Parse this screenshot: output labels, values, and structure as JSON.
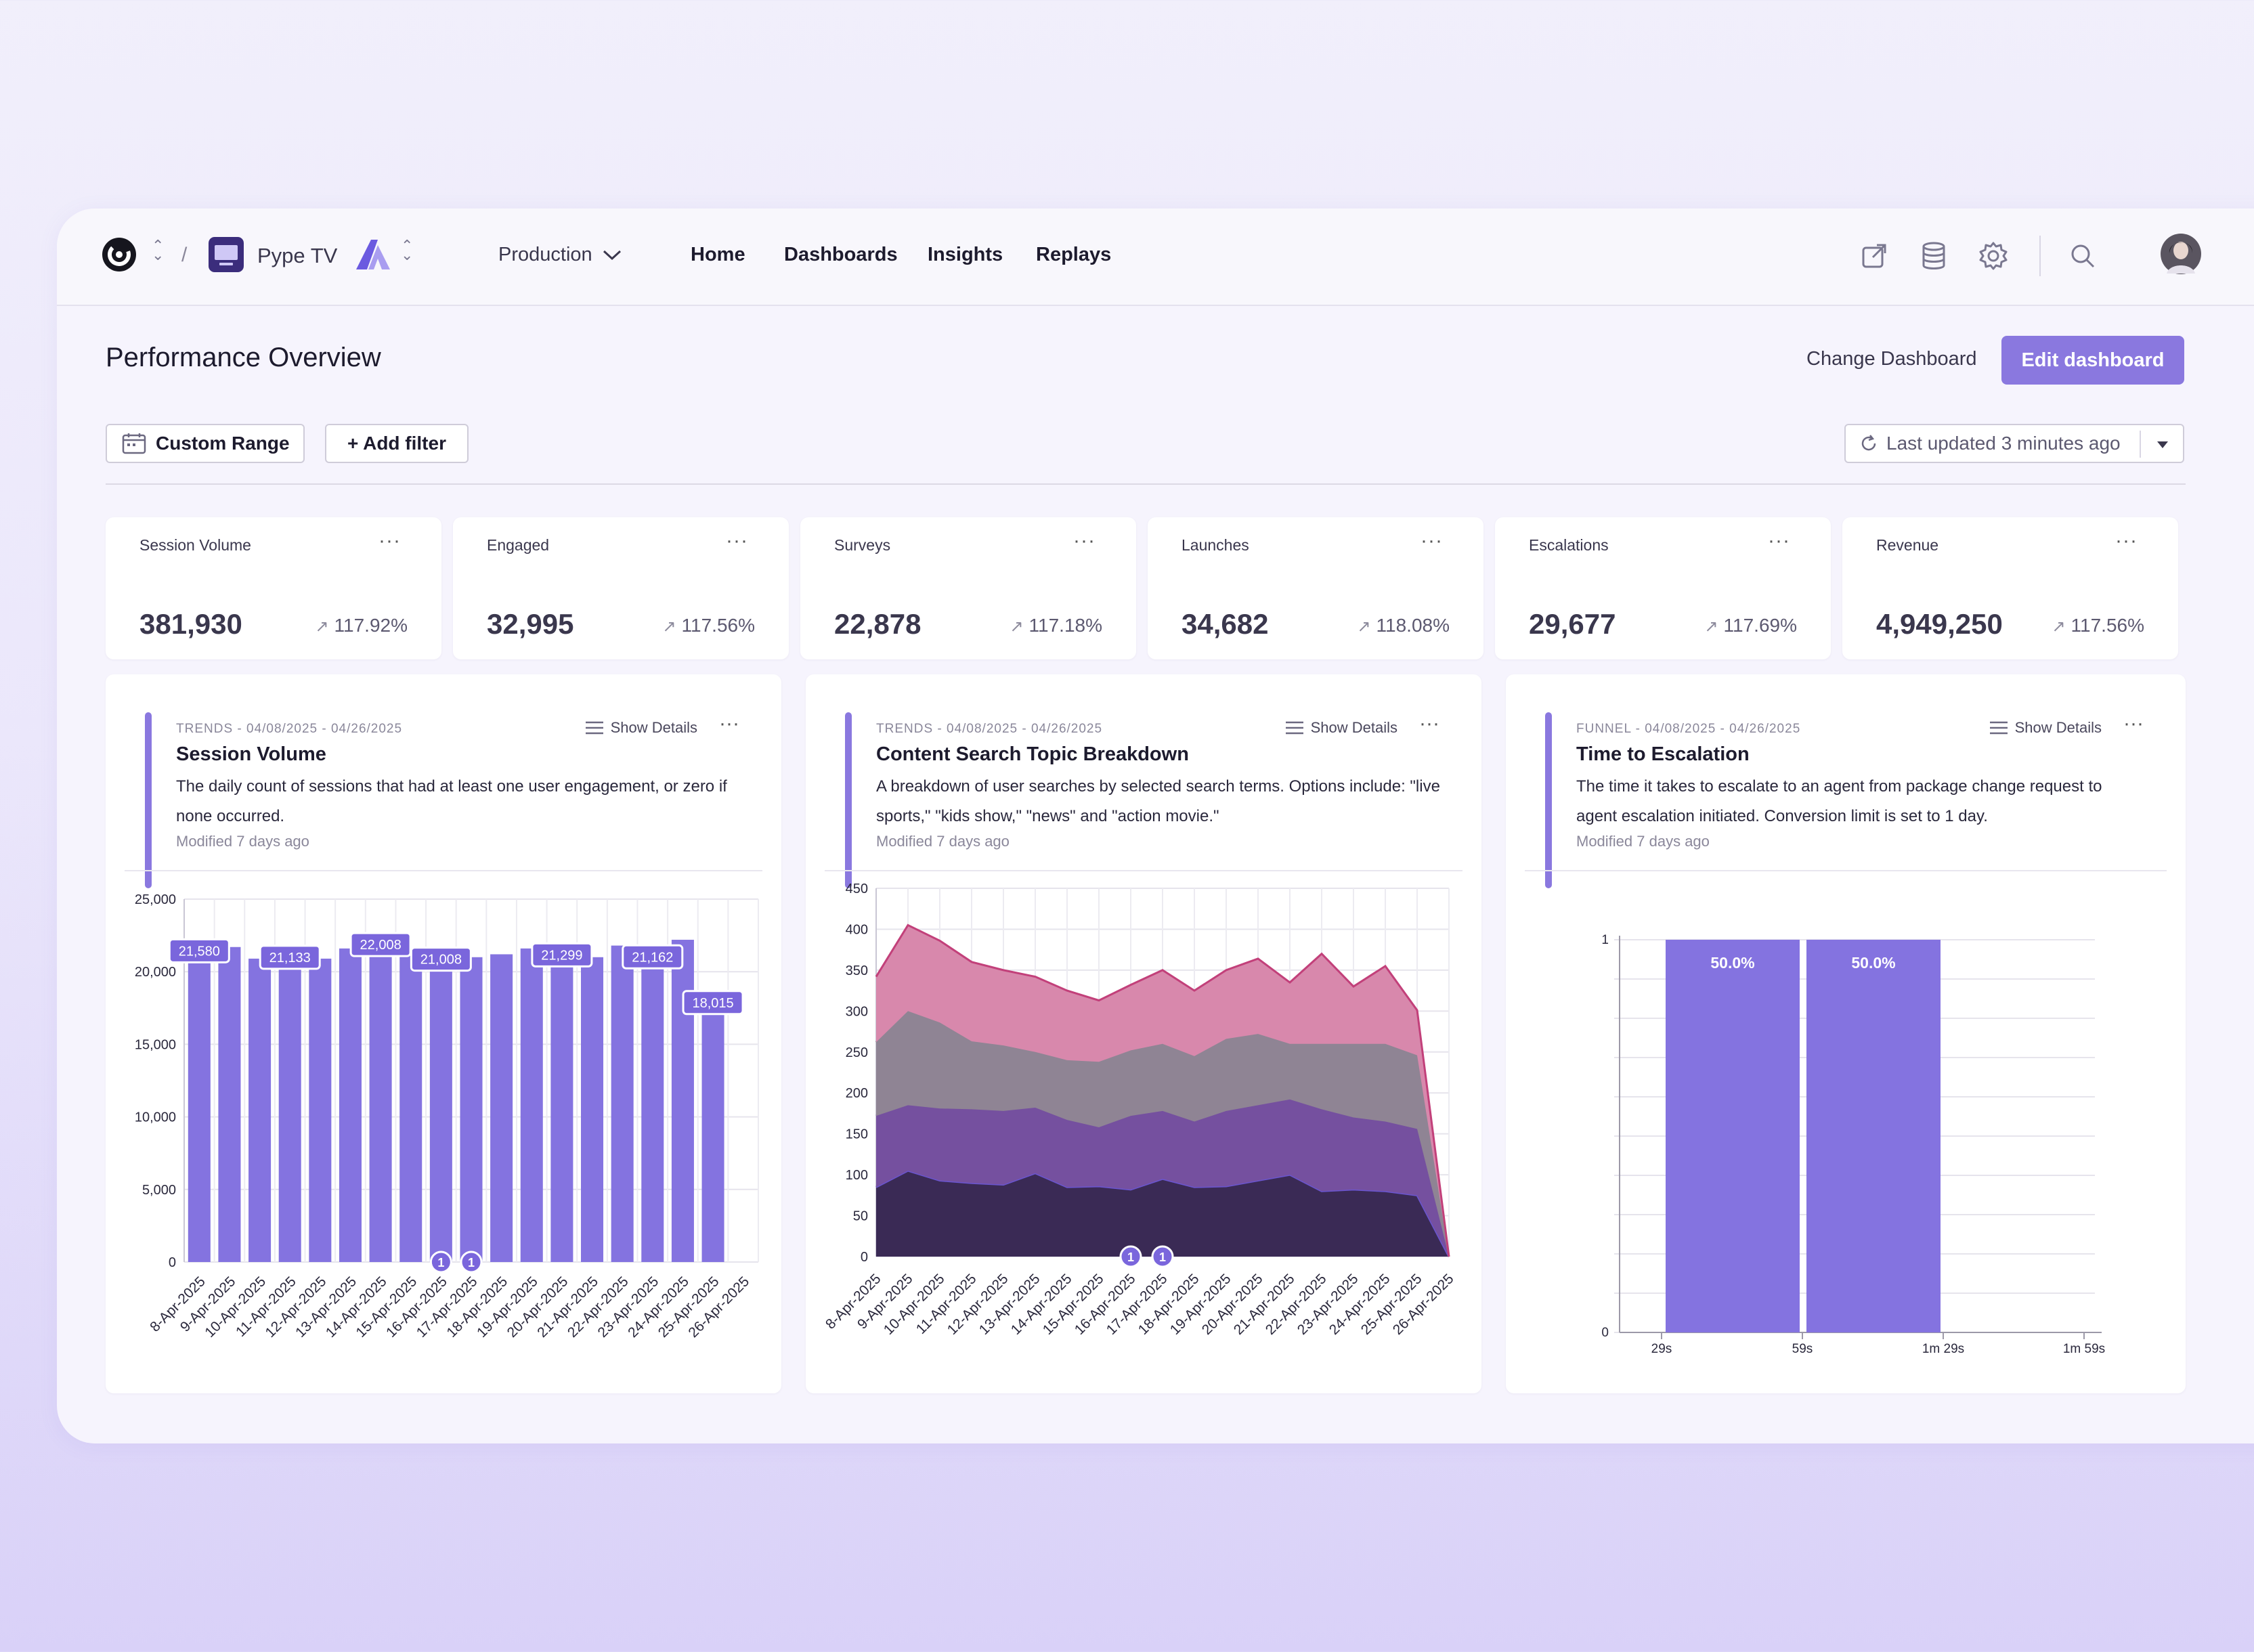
{
  "breadcrumb": {
    "separator": "/",
    "project": "Pype TV"
  },
  "environment": {
    "label": "Production"
  },
  "nav": {
    "items": [
      "Home",
      "Dashboards",
      "Insights",
      "Replays"
    ]
  },
  "page": {
    "title": "Performance Overview",
    "change_dashboard": "Change Dashboard",
    "edit_dashboard": "Edit dashboard"
  },
  "filters": {
    "custom_range": "Custom Range",
    "add_filter": "+ Add filter",
    "last_updated": "Last updated 3 minutes ago"
  },
  "kpis": [
    {
      "title": "Session Volume",
      "value": "381,930",
      "change": "117.92%"
    },
    {
      "title": "Engaged",
      "value": "32,995",
      "change": "117.56%"
    },
    {
      "title": "Surveys",
      "value": "22,878",
      "change": "117.18%"
    },
    {
      "title": "Launches",
      "value": "34,682",
      "change": "118.08%"
    },
    {
      "title": "Escalations",
      "value": "29,677",
      "change": "117.69%"
    },
    {
      "title": "Revenue",
      "value": "4,949,250",
      "change": "117.56%"
    }
  ],
  "panels": [
    {
      "meta": "TRENDS - 04/08/2025 - 04/26/2025",
      "title": "Session Volume",
      "desc": "The daily count of sessions that had at least one user engagement, or zero if none occurred.",
      "modified": "Modified 7 days ago",
      "show_details": "Show Details"
    },
    {
      "meta": "TRENDS - 04/08/2025 - 04/26/2025",
      "title": "Content Search Topic Breakdown",
      "desc": "A breakdown of user searches by selected search terms. Options include: \"live sports,\" \"kids show,\" \"news\" and \"action movie.\"",
      "modified": "Modified 7 days ago",
      "show_details": "Show Details"
    },
    {
      "meta": "FUNNEL - 04/08/2025 - 04/26/2025",
      "title": "Time to Escalation",
      "desc": "The time it takes to escalate to an agent from package change request to agent escalation initiated. Conversion limit is set to 1 day.",
      "modified": "Modified 7 days ago",
      "show_details": "Show Details"
    }
  ],
  "chart_data": [
    {
      "type": "bar",
      "categories": [
        "8-Apr-2025",
        "9-Apr-2025",
        "10-Apr-2025",
        "11-Apr-2025",
        "12-Apr-2025",
        "13-Apr-2025",
        "14-Apr-2025",
        "15-Apr-2025",
        "16-Apr-2025",
        "17-Apr-2025",
        "18-Apr-2025",
        "19-Apr-2025",
        "20-Apr-2025",
        "21-Apr-2025",
        "22-Apr-2025",
        "23-Apr-2025",
        "24-Apr-2025",
        "25-Apr-2025",
        "26-Apr-2025"
      ],
      "values": [
        21580,
        21700,
        20900,
        21133,
        20900,
        21600,
        22008,
        21500,
        21008,
        21000,
        21200,
        21600,
        21299,
        21000,
        21800,
        21162,
        22200,
        18015,
        0
      ],
      "labels": {
        "0": "21,580",
        "3": "21,133",
        "6": "22,008",
        "8": "21,008",
        "12": "21,299",
        "15": "21,162",
        "17": "18,015"
      },
      "annotations": [
        {
          "category": "16-Apr-2025",
          "text": "1"
        },
        {
          "category": "17-Apr-2025",
          "text": "1"
        }
      ],
      "yticks": [
        "0",
        "5,000",
        "10,000",
        "15,000",
        "20,000",
        "25,000"
      ],
      "ylim": [
        0,
        25000
      ],
      "color": "#8473e0",
      "grid": true
    },
    {
      "type": "area",
      "stacked": true,
      "categories": [
        "8-Apr-2025",
        "9-Apr-2025",
        "10-Apr-2025",
        "11-Apr-2025",
        "12-Apr-2025",
        "13-Apr-2025",
        "14-Apr-2025",
        "15-Apr-2025",
        "16-Apr-2025",
        "17-Apr-2025",
        "18-Apr-2025",
        "19-Apr-2025",
        "20-Apr-2025",
        "21-Apr-2025",
        "22-Apr-2025",
        "23-Apr-2025",
        "24-Apr-2025",
        "25-Apr-2025",
        "26-Apr-2025"
      ],
      "series": [
        {
          "color": "#3a2a55",
          "values": [
            85,
            105,
            93,
            90,
            88,
            102,
            85,
            86,
            82,
            95,
            85,
            86,
            93,
            100,
            80,
            82,
            80,
            75,
            0
          ]
        },
        {
          "color": "#75509f",
          "values": [
            87,
            80,
            88,
            90,
            90,
            80,
            82,
            72,
            90,
            83,
            80,
            92,
            92,
            92,
            100,
            88,
            85,
            81,
            0
          ]
        },
        {
          "color": "#8f8494",
          "values": [
            90,
            115,
            105,
            83,
            80,
            68,
            73,
            80,
            80,
            82,
            80,
            88,
            87,
            68,
            80,
            90,
            95,
            90,
            0
          ]
        },
        {
          "color": "#d888ac",
          "values": [
            80,
            105,
            100,
            97,
            92,
            92,
            85,
            75,
            80,
            90,
            80,
            84,
            92,
            75,
            110,
            70,
            95,
            55,
            0
          ]
        }
      ],
      "annotations": [
        {
          "category": "16-Apr-2025",
          "text": "1"
        },
        {
          "category": "17-Apr-2025",
          "text": "1"
        }
      ],
      "yticks": [
        "0",
        "50",
        "100",
        "150",
        "200",
        "250",
        "300",
        "350",
        "400",
        "450"
      ],
      "ylim": [
        0,
        450
      ],
      "grid": true
    },
    {
      "type": "bar",
      "categories": [
        "29s",
        "59s",
        "1m 29s",
        "1m 59s"
      ],
      "values": [
        1,
        1,
        0,
        0
      ],
      "labels": [
        "50.0%",
        "50.0%"
      ],
      "yticks": [
        "0",
        "1"
      ],
      "ylim": [
        0,
        1
      ],
      "color": "#8473e0",
      "grid": true
    }
  ]
}
